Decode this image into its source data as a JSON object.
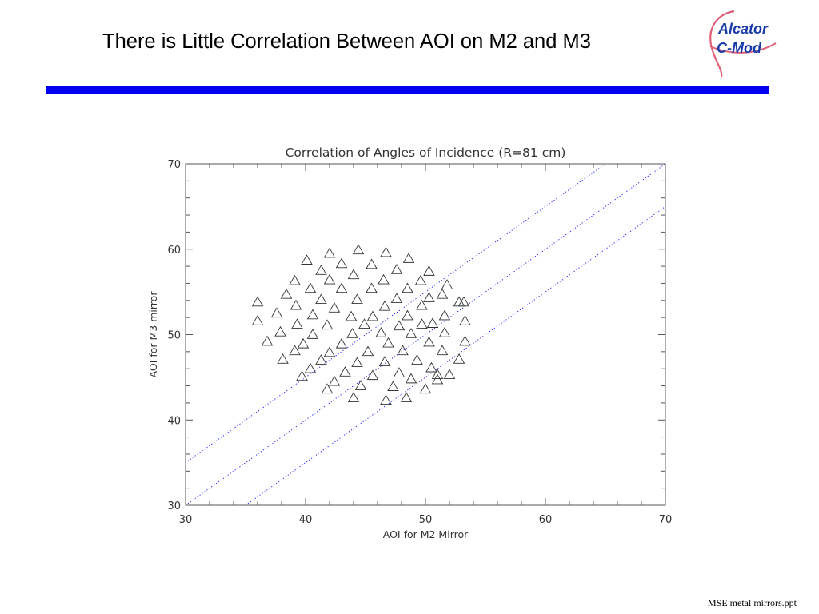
{
  "slide": {
    "title": "There is Little Correlation Between AOI on M2 and M3",
    "footer": "MSE metal mirrors.ppt",
    "logo_text": "Alcator C-Mod",
    "accent_color": "#0000ee"
  },
  "logo": {
    "line1": "Alcator",
    "line2": "C-Mod"
  },
  "chart_data": {
    "type": "scatter",
    "title": "Correlation of Angles of Incidence (R=81 cm)",
    "xlabel": "AOI for M2 Mirror",
    "ylabel": "AOI for M3 mirror",
    "xlim": [
      30,
      70
    ],
    "ylim": [
      30,
      70
    ],
    "xticks": [
      "30",
      "40",
      "50",
      "60",
      "70"
    ],
    "yticks": [
      "30",
      "40",
      "50",
      "60",
      "70"
    ],
    "grid": false,
    "marker": "triangle",
    "points": [
      [
        36,
        53.8
      ],
      [
        36,
        51.6
      ],
      [
        36.8,
        49.2
      ],
      [
        37.6,
        52.5
      ],
      [
        37.9,
        50.3
      ],
      [
        38.1,
        47.1
      ],
      [
        38.4,
        54.7
      ],
      [
        39.1,
        56.3
      ],
      [
        39.2,
        53.4
      ],
      [
        39.3,
        51.2
      ],
      [
        39.1,
        48.1
      ],
      [
        39.7,
        45.1
      ],
      [
        39.8,
        48.9
      ],
      [
        40.1,
        58.7
      ],
      [
        40.4,
        55.4
      ],
      [
        40.6,
        52.3
      ],
      [
        40.6,
        50.0
      ],
      [
        40.4,
        46.0
      ],
      [
        41.3,
        57.5
      ],
      [
        41.3,
        54.1
      ],
      [
        41.3,
        47.0
      ],
      [
        41.8,
        51.1
      ],
      [
        41.8,
        43.6
      ],
      [
        42.0,
        59.5
      ],
      [
        42.0,
        56.4
      ],
      [
        42.0,
        47.9
      ],
      [
        42.4,
        53.1
      ],
      [
        42.4,
        44.5
      ],
      [
        43.0,
        58.3
      ],
      [
        43.0,
        55.4
      ],
      [
        43.0,
        48.9
      ],
      [
        43.3,
        45.6
      ],
      [
        43.8,
        52.1
      ],
      [
        44.0,
        57.0
      ],
      [
        43.9,
        50.1
      ],
      [
        44.0,
        42.6
      ],
      [
        44.3,
        54.1
      ],
      [
        44.3,
        46.7
      ],
      [
        44.4,
        59.9
      ],
      [
        44.6,
        44.0
      ],
      [
        44.9,
        51.2
      ],
      [
        45.2,
        48.0
      ],
      [
        45.5,
        58.2
      ],
      [
        45.5,
        55.4
      ],
      [
        45.6,
        52.1
      ],
      [
        45.6,
        45.2
      ],
      [
        46.3,
        50.2
      ],
      [
        46.5,
        56.4
      ],
      [
        46.7,
        59.6
      ],
      [
        46.6,
        53.3
      ],
      [
        46.6,
        46.8
      ],
      [
        46.7,
        42.3
      ],
      [
        46.9,
        49.0
      ],
      [
        47.3,
        43.9
      ],
      [
        47.6,
        57.6
      ],
      [
        47.6,
        54.2
      ],
      [
        47.8,
        51.0
      ],
      [
        47.8,
        45.5
      ],
      [
        48.1,
        48.1
      ],
      [
        48.4,
        42.6
      ],
      [
        48.5,
        55.4
      ],
      [
        48.5,
        52.2
      ],
      [
        48.6,
        58.9
      ],
      [
        48.8,
        50.1
      ],
      [
        48.8,
        44.8
      ],
      [
        49.3,
        47.0
      ],
      [
        49.6,
        56.3
      ],
      [
        49.7,
        53.4
      ],
      [
        49.7,
        51.2
      ],
      [
        50.0,
        43.6
      ],
      [
        50.3,
        57.4
      ],
      [
        50.3,
        54.3
      ],
      [
        50.3,
        49.1
      ],
      [
        50.5,
        46.1
      ],
      [
        50.6,
        51.3
      ],
      [
        51.0,
        45.3
      ],
      [
        51.0,
        44.7
      ],
      [
        51.4,
        54.7
      ],
      [
        51.4,
        48.1
      ],
      [
        51.6,
        52.2
      ],
      [
        51.6,
        50.2
      ],
      [
        51.8,
        55.8
      ],
      [
        52.0,
        45.3
      ],
      [
        52.8,
        53.8
      ],
      [
        52.8,
        47.1
      ],
      [
        53.3,
        51.6
      ],
      [
        53.3,
        49.2
      ],
      [
        53.2,
        53.8
      ]
    ],
    "reference_lines": [
      {
        "style": "dotted",
        "color": "#2222ff",
        "from": [
          30,
          35
        ],
        "to": [
          70,
          75
        ]
      },
      {
        "style": "dotted",
        "color": "#2222ff",
        "from": [
          30,
          30
        ],
        "to": [
          70,
          70
        ]
      },
      {
        "style": "dotted",
        "color": "#2222ff",
        "from": [
          35,
          30
        ],
        "to": [
          70,
          65
        ]
      }
    ]
  }
}
